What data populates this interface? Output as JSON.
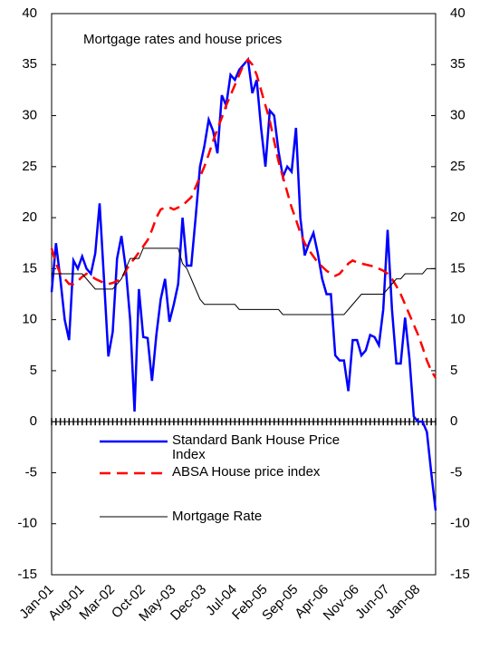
{
  "chart_data": {
    "type": "line",
    "title": "Mortgage rates and house prices",
    "categories": [
      "Jan-01",
      null,
      null,
      null,
      null,
      null,
      null,
      "Aug-01",
      null,
      null,
      null,
      null,
      null,
      null,
      "Mar-02",
      null,
      null,
      null,
      null,
      null,
      null,
      "Oct-02",
      null,
      null,
      null,
      null,
      null,
      null,
      "May-03",
      null,
      null,
      null,
      null,
      null,
      null,
      "Dec-03",
      null,
      null,
      null,
      null,
      null,
      null,
      "Jul-04",
      null,
      null,
      null,
      null,
      null,
      null,
      "Feb-05",
      null,
      null,
      null,
      null,
      null,
      null,
      "Sep-05",
      null,
      null,
      null,
      null,
      null,
      null,
      "Apr-06",
      null,
      null,
      null,
      null,
      null,
      null,
      "Nov-06",
      null,
      null,
      null,
      null,
      null,
      null,
      "Jun-07",
      null,
      null,
      null,
      null,
      null,
      null,
      "Jan-08",
      null,
      null,
      null,
      null
    ],
    "series": [
      {
        "name": "Standard Bank House Price Index",
        "color": "#0000ff",
        "dash": false,
        "width": 2.5,
        "values": [
          12.7,
          17.5,
          14,
          10,
          8,
          15.8,
          15,
          16.2,
          15,
          14.5,
          16.5,
          21.4,
          14,
          6.4,
          8.8,
          16,
          18.2,
          15,
          10,
          1,
          13,
          8.3,
          8.2,
          4,
          8.5,
          12,
          14,
          9.8,
          11.5,
          13.5,
          20,
          15.3,
          15.3,
          20,
          25,
          27,
          29.6,
          28.5,
          26.3,
          32,
          31,
          34,
          33.5,
          34.5,
          35,
          35.5,
          32.2,
          33.5,
          28.8,
          25,
          30.5,
          30,
          26.5,
          24,
          25,
          24.5,
          28.8,
          20,
          16.3,
          17.5,
          18.5,
          16.5,
          14,
          12.5,
          12.5,
          6.5,
          6,
          6,
          3,
          8,
          8,
          6.5,
          7,
          8.5,
          8.3,
          7.5,
          11,
          18.8,
          11,
          5.7,
          5.7,
          10.2,
          6.2,
          0.5,
          0,
          0,
          -1,
          -5,
          -8.7
        ]
      },
      {
        "name": "ABSA House price index",
        "color": "#ff0000",
        "dash": true,
        "width": 2.5,
        "values": [
          17,
          15.5,
          14.5,
          14,
          13.5,
          13.5,
          13.8,
          14.2,
          14.5,
          14.3,
          14,
          13.8,
          13.6,
          13.5,
          13.6,
          13.8,
          14,
          14.8,
          15.5,
          16,
          16.6,
          17.2,
          17.8,
          18.8,
          20,
          20.8,
          21,
          21,
          20.8,
          21,
          21.2,
          21.6,
          22,
          23,
          24,
          25,
          26.2,
          27.5,
          28.7,
          29.8,
          31,
          32,
          33,
          34,
          35,
          35.5,
          35,
          34,
          32.5,
          31,
          29.5,
          27.5,
          25.5,
          24,
          22.5,
          21,
          19.8,
          18.5,
          17.5,
          16.8,
          16.2,
          15.6,
          15.2,
          14.8,
          14.5,
          14.3,
          14.5,
          15,
          15.5,
          15.8,
          15.6,
          15.5,
          15.4,
          15.3,
          15.2,
          15,
          14.8,
          14.5,
          14,
          13.3,
          12.5,
          11.5,
          10.5,
          9.5,
          8.5,
          7.3,
          6,
          5,
          4.3
        ]
      },
      {
        "name": "Mortgage Rate",
        "color": "#000000",
        "dash": false,
        "width": 1,
        "values": [
          14.5,
          14.5,
          14.5,
          14.5,
          14.5,
          14.5,
          14.5,
          14.5,
          14,
          13.5,
          13,
          13,
          13,
          13,
          13,
          13.5,
          14,
          15,
          16,
          16,
          16,
          17,
          17,
          17,
          17,
          17,
          17,
          17,
          17,
          17,
          15.5,
          15,
          14,
          13,
          12,
          11.5,
          11.5,
          11.5,
          11.5,
          11.5,
          11.5,
          11.5,
          11.5,
          11,
          11,
          11,
          11,
          11,
          11,
          11,
          11,
          11,
          11,
          10.5,
          10.5,
          10.5,
          10.5,
          10.5,
          10.5,
          10.5,
          10.5,
          10.5,
          10.5,
          10.5,
          10.5,
          10.5,
          10.5,
          10.5,
          11,
          11.5,
          12,
          12.5,
          12.5,
          12.5,
          12.5,
          12.5,
          12.5,
          13,
          13.5,
          14,
          14,
          14.5,
          14.5,
          14.5,
          14.5,
          14.5,
          15,
          15,
          15
        ]
      }
    ],
    "ylim": [
      -15,
      40
    ],
    "yticks": [
      -15,
      -10,
      -5,
      0,
      5,
      10,
      15,
      20,
      25,
      30,
      35,
      40
    ],
    "y2lim": [
      -15,
      40
    ],
    "y2ticks": [
      -15,
      -10,
      -5,
      0,
      5,
      10,
      15,
      20,
      25,
      30,
      35,
      40
    ],
    "grid": false
  }
}
